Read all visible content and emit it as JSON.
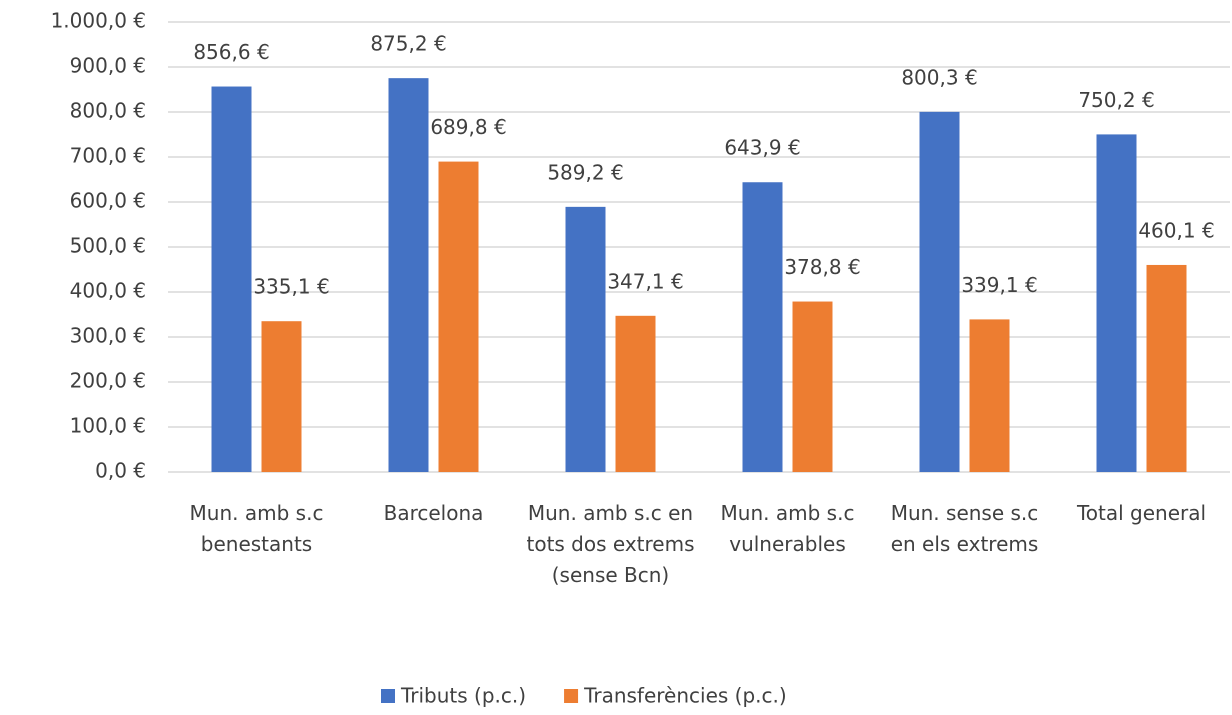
{
  "chart_data": {
    "type": "bar",
    "categories": [
      "Mun. amb s.c benestants",
      "Barcelona",
      "Mun. amb s.c en tots dos extrems (sense Bcn)",
      "Mun. amb s.c vulnerables",
      "Mun. sense s.c en els extrems",
      "Total general"
    ],
    "series": [
      {
        "name": "Tributs (p.c.)",
        "color": "#4472c4",
        "values": [
          856.6,
          875.2,
          589.2,
          643.9,
          800.3,
          750.2
        ],
        "value_labels": [
          "856,6 €",
          "875,2 €",
          "589,2 €",
          "643,9 €",
          "800,3 €",
          "750,2 €"
        ]
      },
      {
        "name": "Transferències (p.c.)",
        "color": "#ed7d31",
        "values": [
          335.1,
          689.8,
          347.1,
          378.8,
          339.1,
          460.1
        ],
        "value_labels": [
          "335,1 €",
          "689,8 €",
          "347,1 €",
          "378,8 €",
          "339,1 €",
          "460,1 €"
        ]
      }
    ],
    "ylim": [
      0,
      1000
    ],
    "yticks": [
      {
        "value": 0,
        "label": "0,0 €"
      },
      {
        "value": 100,
        "label": "100,0 €"
      },
      {
        "value": 200,
        "label": "200,0 €"
      },
      {
        "value": 300,
        "label": "300,0 €"
      },
      {
        "value": 400,
        "label": "400,0 €"
      },
      {
        "value": 500,
        "label": "500,0 €"
      },
      {
        "value": 600,
        "label": "600,0 €"
      },
      {
        "value": 700,
        "label": "700,0 €"
      },
      {
        "value": 800,
        "label": "800,0 €"
      },
      {
        "value": 900,
        "label": "900,0 €"
      },
      {
        "value": 1000,
        "label": "1.000,0 €"
      }
    ],
    "grid": true,
    "legend": "bottom"
  }
}
